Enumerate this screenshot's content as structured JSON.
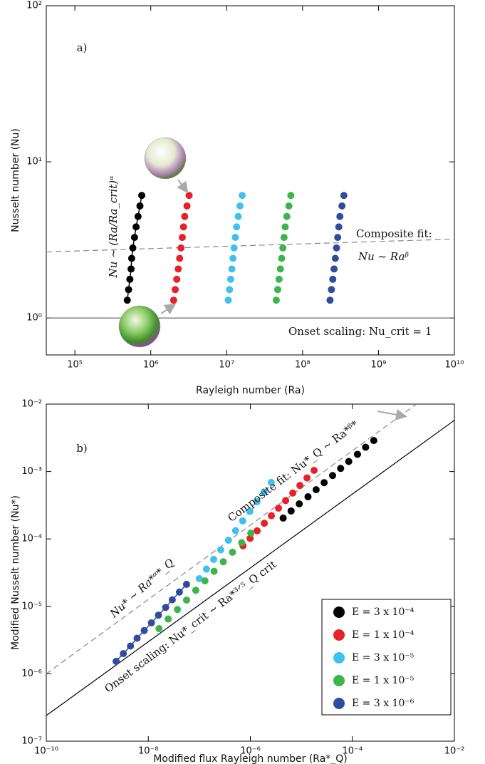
{
  "chart_data": [
    {
      "type": "scatter",
      "xscale": "log",
      "yscale": "log",
      "xlabel": "Rayleigh number (Ra)",
      "ylabel": "Nusselt number (Nu)",
      "xlim": [
        42000,
        10000000000
      ],
      "ylim": [
        0.58,
        100
      ],
      "xticks": [
        {
          "value": 100000,
          "label": "10⁵"
        },
        {
          "value": 1000000,
          "label": "10⁶"
        },
        {
          "value": 10000000,
          "label": "10⁷"
        },
        {
          "value": 100000000,
          "label": "10⁸"
        },
        {
          "value": 1000000000,
          "label": "10⁹"
        },
        {
          "value": 10000000000,
          "label": "10¹⁰"
        }
      ],
      "yticks": [
        {
          "value": 1,
          "label": "10⁰"
        },
        {
          "value": 10,
          "label": "10¹"
        },
        {
          "value": 100,
          "label": "10²"
        }
      ],
      "grid": false,
      "annotations": [
        "a)",
        "Composite fit:",
        "Nu ~ Raᵝ",
        "Onset scaling: Nu_crit = 1",
        "Nu ~ (Ra/Ra_crit)ᵅ"
      ],
      "lines": [
        {
          "x": [
            42000,
            10000000000
          ],
          "values": [
            1,
            1
          ],
          "color": "#555555",
          "dash": false
        },
        {
          "x": [
            42000,
            10000000000
          ],
          "values": [
            2.65,
            3.2
          ],
          "color": "#888888",
          "dash": true
        }
      ],
      "series": [
        {
          "color": "#000000",
          "connected": true,
          "x": [
            490000,
            510000,
            530000,
            550000,
            560000,
            580000,
            610000,
            640000,
            680000,
            720000,
            760000
          ],
          "values": [
            1.3,
            1.52,
            1.77,
            2.06,
            2.41,
            2.81,
            3.28,
            3.83,
            4.47,
            5.22,
            6.09
          ]
        },
        {
          "color": "#e8202a",
          "connected": false,
          "x": [
            2000000,
            2100000,
            2200000,
            2300000,
            2400000,
            2500000,
            2600000,
            2700000,
            2800000,
            3000000,
            3200000
          ],
          "values": [
            1.3,
            1.52,
            1.77,
            2.06,
            2.41,
            2.81,
            3.28,
            3.83,
            4.47,
            5.22,
            6.09
          ]
        },
        {
          "color": "#3fc1ee",
          "connected": false,
          "x": [
            10500000,
            10900000,
            11300000,
            11700000,
            12100000,
            12500000,
            13000000,
            13500000,
            14200000,
            15000000,
            16000000
          ],
          "values": [
            1.3,
            1.52,
            1.77,
            2.06,
            2.41,
            2.81,
            3.28,
            3.83,
            4.47,
            5.22,
            6.09
          ]
        },
        {
          "color": "#3cb54a",
          "connected": false,
          "x": [
            45000000,
            47000000,
            49000000,
            51000000,
            53000000,
            55000000,
            57000000,
            59000000,
            62000000,
            66000000,
            70000000
          ],
          "values": [
            1.3,
            1.52,
            1.77,
            2.06,
            2.41,
            2.81,
            3.28,
            3.83,
            4.47,
            5.22,
            6.09
          ]
        },
        {
          "color": "#2f4c9f",
          "connected": false,
          "x": [
            230000000,
            240000000,
            250000000,
            260000000,
            270000000,
            280000000,
            290000000,
            300000000,
            310000000,
            330000000,
            350000000
          ],
          "values": [
            1.3,
            1.52,
            1.77,
            2.06,
            2.41,
            2.81,
            3.28,
            3.83,
            4.47,
            5.22,
            6.09
          ]
        }
      ]
    },
    {
      "type": "scatter",
      "xscale": "log",
      "yscale": "log",
      "xlabel": "Modified flux Rayleigh number (Ra*_Q)",
      "ylabel": "Modified Nusselt number (Nu*)",
      "xlim": [
        1e-10,
        0.01
      ],
      "ylim": [
        1e-07,
        0.01
      ],
      "xticks": [
        {
          "value": 1e-10,
          "label": "10⁻¹⁰"
        },
        {
          "value": 1e-08,
          "label": "10⁻⁸"
        },
        {
          "value": 1e-06,
          "label": "10⁻⁶"
        },
        {
          "value": 0.0001,
          "label": "10⁻⁴"
        },
        {
          "value": 0.01,
          "label": "10⁻²"
        }
      ],
      "yticks": [
        {
          "value": 1e-07,
          "label": "10⁻⁷"
        },
        {
          "value": 1e-06,
          "label": "10⁻⁶"
        },
        {
          "value": 1e-05,
          "label": "10⁻⁵"
        },
        {
          "value": 0.0001,
          "label": "10⁻⁴"
        },
        {
          "value": 0.001,
          "label": "10⁻³"
        },
        {
          "value": 0.01,
          "label": "10⁻²"
        }
      ],
      "grid": false,
      "legend": "lower right",
      "annotations": [
        "b)",
        "Composite fit: Nu*_Q ~ Ra*ᵝ*",
        "Onset scaling: Nu*_crit ~ Ra*³ᐟ⁵_Q crit",
        "Nu* ~ Ra*ᵅ*_Q"
      ],
      "lines": [
        {
          "x": [
            1e-10,
            0.01
          ],
          "values": [
            2.4e-07,
            0.00575
          ],
          "color": "#000000",
          "dash": false
        },
        {
          "x": [
            1e-10,
            0.0018
          ],
          "values": [
            1e-06,
            0.01
          ],
          "color": "#888888",
          "dash": true
        }
      ],
      "series": [
        {
          "name": "E = 3 x 10⁻⁴",
          "color": "#000000",
          "connected": false,
          "x": [
            4.4e-06,
            6.3e-06,
            9.1e-06,
            1.35e-05,
            1.95e-05,
            2.8e-05,
            4.1e-05,
            5.9e-05,
            8.5e-05,
            0.000126,
            0.000182,
            0.000263
          ],
          "values": [
            0.000204,
            0.00026,
            0.000331,
            0.000422,
            0.000537,
            0.000684,
            0.000871,
            0.00111,
            0.00141,
            0.0018,
            0.00229,
            0.00288
          ]
        },
        {
          "name": "E = 1 x 10⁻⁴",
          "color": "#e8202a",
          "connected": false,
          "x": [
            7.2e-07,
            9.9e-07,
            1.36e-06,
            1.88e-06,
            2.59e-06,
            3.57e-06,
            4.93e-06,
            6.79e-06,
            9.37e-06,
            1.29e-05,
            1.78e-05
          ],
          "values": [
            7.9e-05,
            0.000102,
            0.000132,
            0.000171,
            0.000221,
            0.000286,
            0.000371,
            0.00048,
            0.000621,
            0.000804,
            0.00104
          ]
        },
        {
          "name": "E = 3 x 10⁻⁵",
          "color": "#3fc1ee",
          "connected": false,
          "x": [
            1e-07,
            1.38e-07,
            1.91e-07,
            2.63e-07,
            3.72e-07,
            5.13e-07,
            7.08e-07,
            9.77e-07,
            1.35e-06,
            1.86e-06,
            2.57e-06
          ],
          "values": [
            2.57e-05,
            3.57e-05,
            4.97e-05,
            6.89e-05,
            9.57e-05,
            0.000133,
            0.000185,
            0.000256,
            0.000356,
            0.000495,
            0.000687
          ]
        },
        {
          "name": "E = 1 x 10⁻⁵",
          "color": "#3cb54a",
          "connected": false,
          "x": [
            1.62e-08,
            2.45e-08,
            3.72e-08,
            5.62e-08,
            8.51e-08,
            1.29e-07,
            1.95e-07,
            2.95e-07,
            4.47e-07,
            6.76e-07,
            1.02e-06
          ],
          "values": [
            4.68e-06,
            6.49e-06,
            8.98e-06,
            1.24e-05,
            1.73e-05,
            2.39e-05,
            3.31e-05,
            4.59e-05,
            6.35e-05,
            8.81e-05,
            0.000122
          ]
        },
        {
          "name": "E = 3 x 10⁻⁶",
          "color": "#2f4c9f",
          "connected": true,
          "x": [
            2.34e-09,
            3.24e-09,
            4.47e-09,
            6.03e-09,
            8.32e-09,
            1.15e-08,
            1.58e-08,
            2.19e-08,
            2.95e-08,
            4.07e-08,
            5.62e-08
          ],
          "values": [
            1.53e-06,
            1.99e-06,
            2.58e-06,
            3.37e-06,
            4.38e-06,
            5.69e-06,
            7.4e-06,
            9.64e-06,
            1.25e-05,
            1.63e-05,
            2.12e-05
          ]
        }
      ]
    }
  ]
}
